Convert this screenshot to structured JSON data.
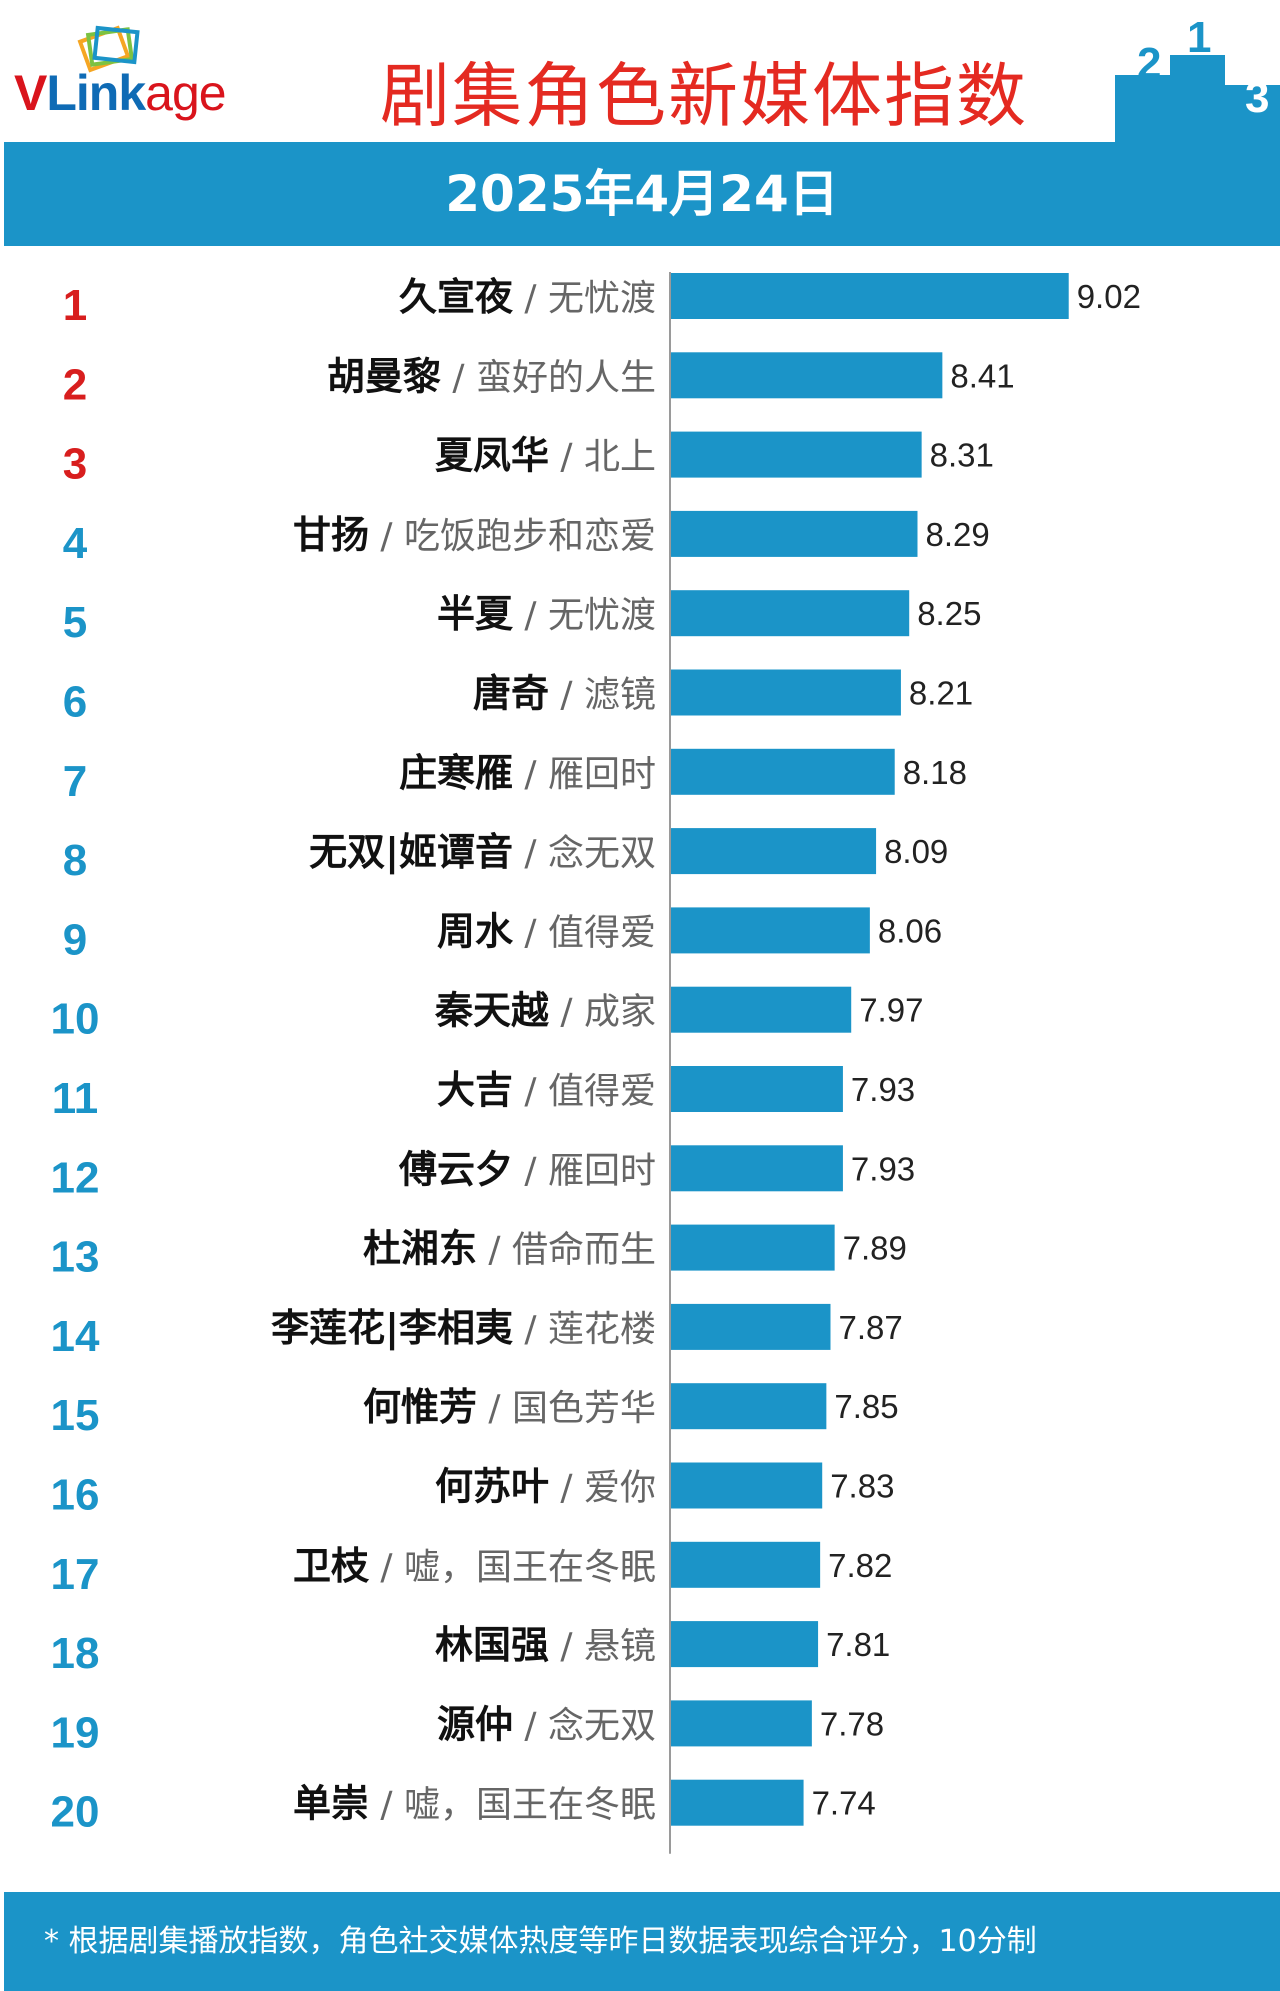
{
  "logo": {
    "v": "V",
    "link": "Link",
    "age": "age"
  },
  "title": "剧集角色新媒体指数",
  "podium": {
    "first": "1",
    "second": "2",
    "third": "3"
  },
  "date": "2025年4月24日",
  "footer": "* 根据剧集播放指数，角色社交媒体热度等昨日数据表现综合评分，10分制",
  "colors": {
    "accent": "#1b94c8",
    "title_red": "#e42a21",
    "rank_red": "#d81e1e",
    "rank_blue": "#1b94c8",
    "bar": "#1b94c8"
  },
  "chart_data": {
    "type": "bar",
    "orientation": "horizontal",
    "title": "剧集角色新媒体指数",
    "xlim": [
      7.1,
      9.9
    ],
    "separator": "/",
    "series": [
      {
        "rank": "1",
        "name": "久宣夜",
        "show": "无忧渡",
        "value": 9.02,
        "label": "9.02"
      },
      {
        "rank": "2",
        "name": "胡曼黎",
        "show": "蛮好的人生",
        "value": 8.41,
        "label": "8.41"
      },
      {
        "rank": "3",
        "name": "夏凤华",
        "show": "北上",
        "value": 8.31,
        "label": "8.31"
      },
      {
        "rank": "4",
        "name": "甘扬",
        "show": "吃饭跑步和恋爱",
        "value": 8.29,
        "label": "8.29"
      },
      {
        "rank": "5",
        "name": "半夏",
        "show": "无忧渡",
        "value": 8.25,
        "label": "8.25"
      },
      {
        "rank": "6",
        "name": "唐奇",
        "show": "滤镜",
        "value": 8.21,
        "label": "8.21"
      },
      {
        "rank": "7",
        "name": "庄寒雁",
        "show": "雁回时",
        "value": 8.18,
        "label": "8.18"
      },
      {
        "rank": "8",
        "name": "无双|姬谭音",
        "show": "念无双",
        "value": 8.09,
        "label": "8.09"
      },
      {
        "rank": "9",
        "name": "周水",
        "show": "值得爱",
        "value": 8.06,
        "label": "8.06"
      },
      {
        "rank": "10",
        "name": "秦天越",
        "show": "成家",
        "value": 7.97,
        "label": "7.97"
      },
      {
        "rank": "11",
        "name": "大吉",
        "show": "值得爱",
        "value": 7.93,
        "label": "7.93"
      },
      {
        "rank": "12",
        "name": "傅云夕",
        "show": "雁回时",
        "value": 7.93,
        "label": "7.93"
      },
      {
        "rank": "13",
        "name": "杜湘东",
        "show": "借命而生",
        "value": 7.89,
        "label": "7.89"
      },
      {
        "rank": "14",
        "name": "李莲花|李相夷",
        "show": "莲花楼",
        "value": 7.87,
        "label": "7.87"
      },
      {
        "rank": "15",
        "name": "何惟芳",
        "show": "国色芳华",
        "value": 7.85,
        "label": "7.85"
      },
      {
        "rank": "16",
        "name": "何苏叶",
        "show": "爱你",
        "value": 7.83,
        "label": "7.83"
      },
      {
        "rank": "17",
        "name": "卫枝",
        "show": "嘘，国王在冬眠",
        "value": 7.82,
        "label": "7.82"
      },
      {
        "rank": "18",
        "name": "林国强",
        "show": "悬镜",
        "value": 7.81,
        "label": "7.81"
      },
      {
        "rank": "19",
        "name": "源仲",
        "show": "念无双",
        "value": 7.78,
        "label": "7.78"
      },
      {
        "rank": "20",
        "name": "单崇",
        "show": "嘘，国王在冬眠",
        "value": 7.74,
        "label": "7.74"
      }
    ]
  }
}
